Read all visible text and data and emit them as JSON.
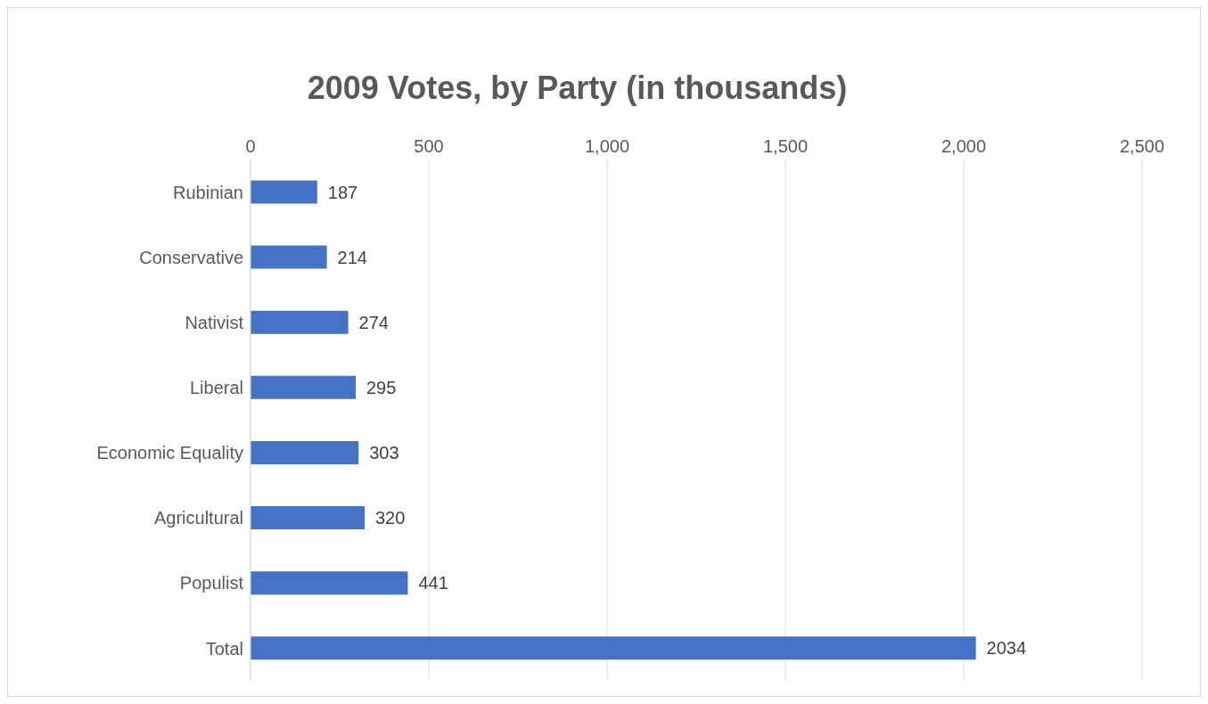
{
  "chart_data": {
    "type": "bar",
    "orientation": "horizontal",
    "title": "2009 Votes, by Party (in thousands)",
    "categories": [
      "Rubinian",
      "Conservative",
      "Nativist",
      "Liberal",
      "Economic Equality",
      "Agricultural",
      "Populist",
      "Total"
    ],
    "values": [
      187,
      214,
      274,
      295,
      303,
      320,
      441,
      2034
    ],
    "color": "#4472c4",
    "xlim": [
      0,
      2500
    ],
    "xticks": [
      0,
      {
        "value": 500,
        "label": "500"
      },
      {
        "value": 1000,
        "label": "1,000"
      },
      {
        "value": 1500,
        "label": "1,500"
      },
      {
        "value": 2000,
        "label": "2,000"
      },
      {
        "value": 2500,
        "label": "2,500"
      }
    ],
    "grid": "x",
    "data_labels": true
  }
}
